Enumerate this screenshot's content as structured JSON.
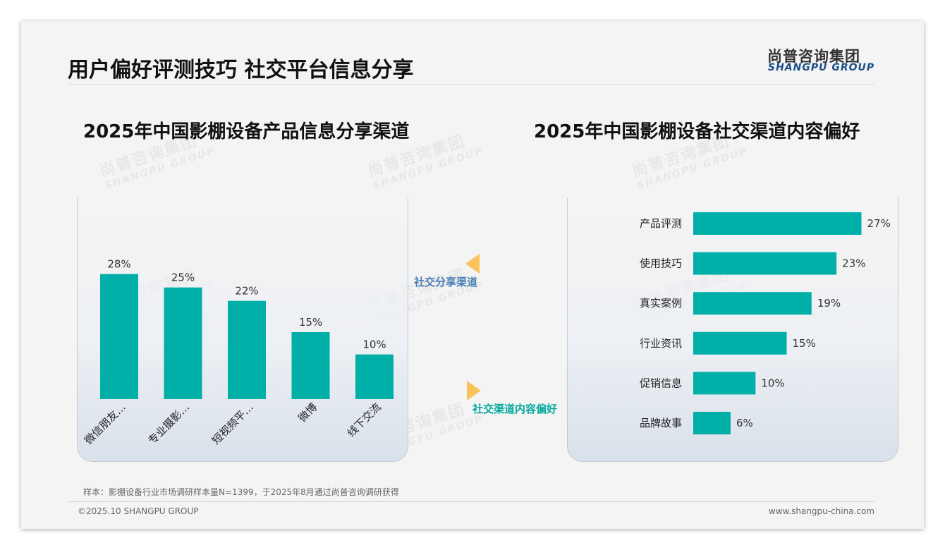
{
  "page": {
    "title": "用户偏好评测技巧 社交平台信息分享",
    "logo_cn": "尚普咨询集团",
    "logo_en": "SHANGPU GROUP",
    "watermark_cn": "尚普咨询集团",
    "watermark_en": "SHANGPU GROUP",
    "footer_note": "样本：影棚设备行业市场调研样本量N=1399，于2025年8月通过尚普咨询调研获得",
    "footer_copyright": "©2025.10 SHANGPU GROUP",
    "footer_url": "www.shangpu-china.com",
    "bar_color": "#00b0a8",
    "arrow_color": "#f7c35a"
  },
  "arrows": [
    {
      "label": "社交分享渠道",
      "color": "#4a7fb5"
    },
    {
      "label": "社交渠道内容偏好",
      "color": "#00a89e"
    }
  ],
  "chart_data": [
    {
      "type": "bar",
      "title": "2025年中国影棚设备产品信息分享渠道",
      "categories": [
        "微信朋友…",
        "专业摄影…",
        "短视频平…",
        "微博",
        "线下交流"
      ],
      "values": [
        28,
        25,
        22,
        15,
        10
      ],
      "value_labels": [
        "28%",
        "25%",
        "22%",
        "15%",
        "10%"
      ],
      "unit": "%",
      "ylim": [
        0,
        30
      ],
      "grid": false,
      "legend": "none"
    },
    {
      "type": "bar",
      "orientation": "horizontal",
      "title": "2025年中国影棚设备社交渠道内容偏好",
      "categories": [
        "产品评测",
        "使用技巧",
        "真实案例",
        "行业资讯",
        "促销信息",
        "品牌故事"
      ],
      "values": [
        27,
        23,
        19,
        15,
        10,
        6
      ],
      "value_labels": [
        "27%",
        "23%",
        "19%",
        "15%",
        "10%",
        "6%"
      ],
      "unit": "%",
      "xlim": [
        0,
        30
      ],
      "grid": false,
      "legend": "none"
    }
  ]
}
